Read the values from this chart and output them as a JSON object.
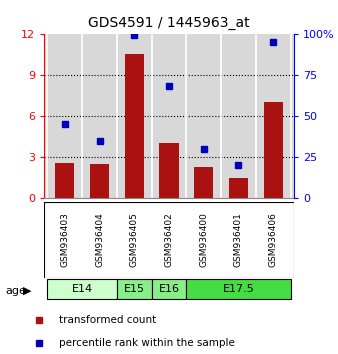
{
  "title": "GDS4591 / 1445963_at",
  "samples": [
    "GSM936403",
    "GSM936404",
    "GSM936405",
    "GSM936402",
    "GSM936400",
    "GSM936401",
    "GSM936406"
  ],
  "transformed_count": [
    2.6,
    2.5,
    10.5,
    4.0,
    2.3,
    1.5,
    7.0
  ],
  "percentile_rank": [
    45,
    35,
    99,
    68,
    30,
    20,
    95
  ],
  "age_groups": [
    {
      "label": "E14",
      "samples": [
        0,
        1
      ],
      "color": "#ccffcc"
    },
    {
      "label": "E15",
      "samples": [
        2
      ],
      "color": "#88ee88"
    },
    {
      "label": "E16",
      "samples": [
        3
      ],
      "color": "#88ee88"
    },
    {
      "label": "E17.5",
      "samples": [
        4,
        5,
        6
      ],
      "color": "#44dd44"
    }
  ],
  "bar_color": "#aa1111",
  "dot_color": "#0000bb",
  "left_ylim": [
    0,
    12
  ],
  "right_ylim": [
    0,
    100
  ],
  "left_yticks": [
    0,
    3,
    6,
    9,
    12
  ],
  "right_yticks": [
    0,
    25,
    50,
    75,
    100
  ],
  "bg_color": "#d8d8d8",
  "bar_width": 0.55
}
